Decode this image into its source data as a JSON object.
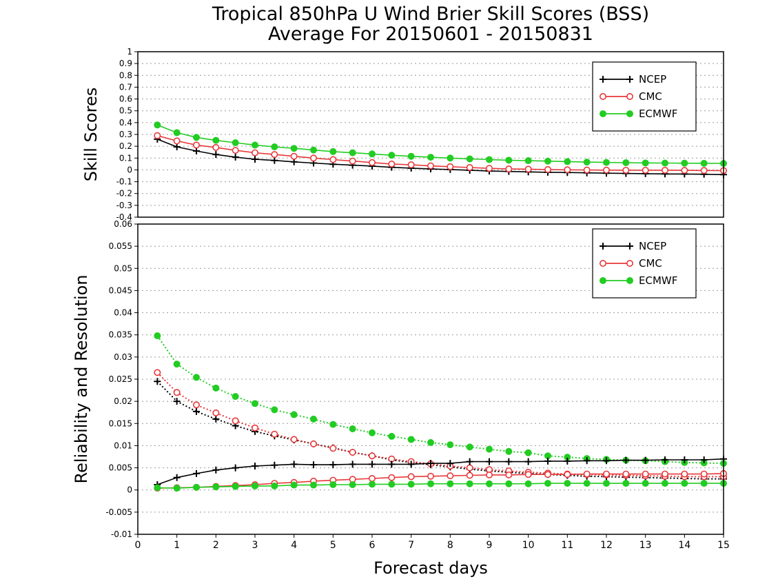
{
  "title_line1": "Tropical 850hPa U Wind Brier Skill Scores (BSS)",
  "title_line2": "Average For 20150601 - 20150831",
  "xlabel": "Forecast days",
  "colors": {
    "NCEP": "#000000",
    "CMC": "#e8383a",
    "ECMWF": "#22cc22"
  },
  "chart_data": [
    {
      "type": "line",
      "title": "",
      "ylabel": "Skill Scores",
      "xlabel": "",
      "xlim": [
        0,
        15
      ],
      "ylim": [
        -0.4,
        1
      ],
      "xticks": [
        0,
        1,
        2,
        3,
        4,
        5,
        6,
        7,
        8,
        9,
        10,
        11,
        12,
        13,
        14,
        15
      ],
      "yticks": [
        -0.4,
        -0.3,
        -0.2,
        -0.1,
        0,
        0.1,
        0.2,
        0.3,
        0.4,
        0.5,
        0.6,
        0.7,
        0.8,
        0.9,
        1
      ],
      "ytick_labels": [
        "-0.4",
        "-0.3",
        "-0.2",
        "-0.1",
        "0",
        "0.1",
        "0.2",
        "0.3",
        "0.4",
        "0.5",
        "0.6",
        "0.7",
        "0.8",
        "0.9",
        "1"
      ],
      "grid": true,
      "legend": [
        "NCEP",
        "CMC",
        "ECMWF"
      ],
      "legend_position": "top-right",
      "x": [
        0.5,
        1,
        1.5,
        2,
        2.5,
        3,
        3.5,
        4,
        4.5,
        5,
        5.5,
        6,
        6.5,
        7,
        7.5,
        8,
        8.5,
        9,
        9.5,
        10,
        10.5,
        11,
        11.5,
        12,
        12.5,
        13,
        13.5,
        14,
        14.5,
        15
      ],
      "series": [
        {
          "name": "NCEP",
          "marker": "plus",
          "style": "solid",
          "values": [
            0.26,
            0.195,
            0.16,
            0.13,
            0.108,
            0.09,
            0.08,
            0.068,
            0.058,
            0.048,
            0.04,
            0.032,
            0.022,
            0.015,
            0.008,
            0.003,
            -0.003,
            -0.01,
            -0.013,
            -0.017,
            -0.02,
            -0.022,
            -0.025,
            -0.028,
            -0.03,
            -0.032,
            -0.034,
            -0.035,
            -0.037,
            -0.04
          ]
        },
        {
          "name": "CMC",
          "marker": "open-circle",
          "style": "solid",
          "values": [
            0.29,
            0.245,
            0.21,
            0.19,
            0.165,
            0.145,
            0.13,
            0.115,
            0.1,
            0.087,
            0.075,
            0.062,
            0.05,
            0.043,
            0.034,
            0.027,
            0.02,
            0.013,
            0.008,
            0.006,
            0.003,
            0.001,
            -0.001,
            -0.002,
            -0.003,
            -0.003,
            -0.003,
            -0.004,
            -0.005,
            -0.006
          ]
        },
        {
          "name": "ECMWF",
          "marker": "filled-circle",
          "style": "solid",
          "values": [
            0.38,
            0.315,
            0.275,
            0.25,
            0.23,
            0.21,
            0.195,
            0.182,
            0.168,
            0.155,
            0.145,
            0.135,
            0.124,
            0.115,
            0.107,
            0.1,
            0.093,
            0.087,
            0.082,
            0.078,
            0.074,
            0.07,
            0.066,
            0.063,
            0.061,
            0.059,
            0.058,
            0.057,
            0.056,
            0.055
          ]
        }
      ]
    },
    {
      "type": "line",
      "title": "",
      "ylabel": "Reliability and Resolution",
      "xlabel": "Forecast days",
      "xlim": [
        0,
        15
      ],
      "ylim": [
        -0.01,
        0.06
      ],
      "xticks": [
        0,
        1,
        2,
        3,
        4,
        5,
        6,
        7,
        8,
        9,
        10,
        11,
        12,
        13,
        14,
        15
      ],
      "yticks": [
        -0.01,
        -0.005,
        0,
        0.005,
        0.01,
        0.015,
        0.02,
        0.025,
        0.03,
        0.035,
        0.04,
        0.045,
        0.05,
        0.055,
        0.06
      ],
      "ytick_labels": [
        "-0.01",
        "-0.005",
        "0",
        "0.005",
        "0.01",
        "0.015",
        "0.02",
        "0.025",
        "0.03",
        "0.035",
        "0.04",
        "0.045",
        "0.05",
        "0.055",
        "0.06"
      ],
      "grid": true,
      "legend": [
        "NCEP",
        "CMC",
        "ECMWF"
      ],
      "legend_position": "top-right",
      "x": [
        0.5,
        1,
        1.5,
        2,
        2.5,
        3,
        3.5,
        4,
        4.5,
        5,
        5.5,
        6,
        6.5,
        7,
        7.5,
        8,
        8.5,
        9,
        9.5,
        10,
        10.5,
        11,
        11.5,
        12,
        12.5,
        13,
        13.5,
        14,
        14.5,
        15
      ],
      "series": [
        {
          "name": "NCEP",
          "group": "resolution",
          "marker": "plus",
          "style": "dotted",
          "values": [
            0.0245,
            0.02,
            0.0177,
            0.016,
            0.0145,
            0.0132,
            0.0122,
            0.0113,
            0.0104,
            0.0095,
            0.0085,
            0.0077,
            0.0068,
            0.0062,
            0.0057,
            0.0052,
            0.0047,
            0.0043,
            0.004,
            0.0037,
            0.0035,
            0.0033,
            0.0031,
            0.003,
            0.0029,
            0.0028,
            0.0027,
            0.0026,
            0.0025,
            0.0025
          ]
        },
        {
          "name": "CMC",
          "group": "resolution",
          "marker": "open-circle",
          "style": "dotted",
          "values": [
            0.0265,
            0.022,
            0.0192,
            0.0174,
            0.0156,
            0.014,
            0.0126,
            0.0114,
            0.0104,
            0.0094,
            0.0085,
            0.0077,
            0.007,
            0.0064,
            0.0059,
            0.0054,
            0.005,
            0.0046,
            0.0043,
            0.004,
            0.0038,
            0.0036,
            0.0035,
            0.0034,
            0.0033,
            0.0032,
            0.0031,
            0.003,
            0.003,
            0.003
          ]
        },
        {
          "name": "ECMWF",
          "group": "resolution",
          "marker": "filled-circle",
          "style": "dotted",
          "values": [
            0.0348,
            0.0284,
            0.0254,
            0.023,
            0.0211,
            0.0195,
            0.0181,
            0.017,
            0.016,
            0.0148,
            0.0138,
            0.0129,
            0.0121,
            0.0114,
            0.0107,
            0.0102,
            0.0097,
            0.0092,
            0.0087,
            0.0084,
            0.0077,
            0.0074,
            0.0071,
            0.0069,
            0.0067,
            0.0066,
            0.0064,
            0.0062,
            0.0061,
            0.006
          ]
        },
        {
          "name": "NCEP",
          "group": "reliability",
          "marker": "plus",
          "style": "solid",
          "values": [
            0.0012,
            0.0028,
            0.0037,
            0.0045,
            0.005,
            0.0054,
            0.0056,
            0.0058,
            0.0057,
            0.0057,
            0.0058,
            0.0058,
            0.0058,
            0.0058,
            0.006,
            0.006,
            0.0064,
            0.0064,
            0.0064,
            0.0064,
            0.0065,
            0.0065,
            0.0066,
            0.0066,
            0.0067,
            0.0067,
            0.0068,
            0.0068,
            0.0068,
            0.007
          ]
        },
        {
          "name": "CMC",
          "group": "reliability",
          "marker": "open-circle",
          "style": "solid",
          "values": [
            0.0004,
            0.0005,
            0.0006,
            0.0008,
            0.001,
            0.0012,
            0.0015,
            0.0017,
            0.002,
            0.0022,
            0.0024,
            0.0026,
            0.0028,
            0.003,
            0.0031,
            0.0032,
            0.0033,
            0.0034,
            0.0034,
            0.0035,
            0.0035,
            0.0035,
            0.0036,
            0.0036,
            0.0036,
            0.0036,
            0.0036,
            0.0036,
            0.0036,
            0.0037
          ]
        },
        {
          "name": "ECMWF",
          "group": "reliability",
          "marker": "filled-circle",
          "style": "solid",
          "values": [
            0.0005,
            0.0004,
            0.0006,
            0.0007,
            0.0008,
            0.0009,
            0.0009,
            0.0011,
            0.0011,
            0.0012,
            0.0012,
            0.0013,
            0.0013,
            0.0013,
            0.0014,
            0.0014,
            0.0014,
            0.0014,
            0.0014,
            0.0014,
            0.0015,
            0.0015,
            0.0015,
            0.0015,
            0.0015,
            0.0015,
            0.0015,
            0.0015,
            0.0015,
            0.0015
          ]
        }
      ]
    }
  ]
}
